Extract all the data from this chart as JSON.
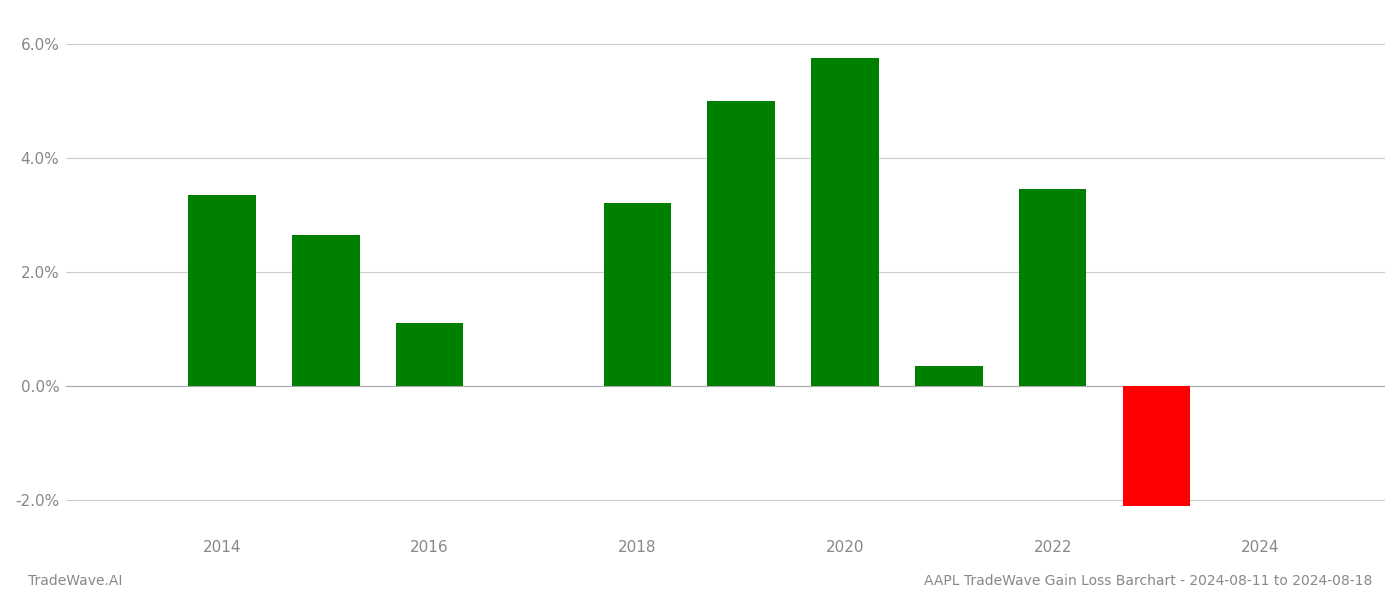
{
  "years": [
    2014,
    2015,
    2016,
    2018,
    2019,
    2020,
    2021,
    2022,
    2023
  ],
  "values": [
    0.0335,
    0.0265,
    0.011,
    0.032,
    0.05,
    0.0575,
    0.0035,
    0.0345,
    -0.021
  ],
  "colors": [
    "#008000",
    "#008000",
    "#008000",
    "#008000",
    "#008000",
    "#008000",
    "#008000",
    "#008000",
    "#ff0000"
  ],
  "ylim": [
    -0.025,
    0.065
  ],
  "yticks": [
    -0.02,
    0.0,
    0.02,
    0.04,
    0.06
  ],
  "xticks": [
    2014,
    2016,
    2018,
    2020,
    2022,
    2024
  ],
  "title": "AAPL TradeWave Gain Loss Barchart - 2024-08-11 to 2024-08-18",
  "footer_left": "TradeWave.AI",
  "background_color": "#ffffff",
  "bar_width": 0.65,
  "grid_color": "#cccccc",
  "zero_line_color": "#aaaaaa",
  "title_fontsize": 10,
  "footer_fontsize": 10,
  "tick_fontsize": 11,
  "tick_color": "#888888"
}
